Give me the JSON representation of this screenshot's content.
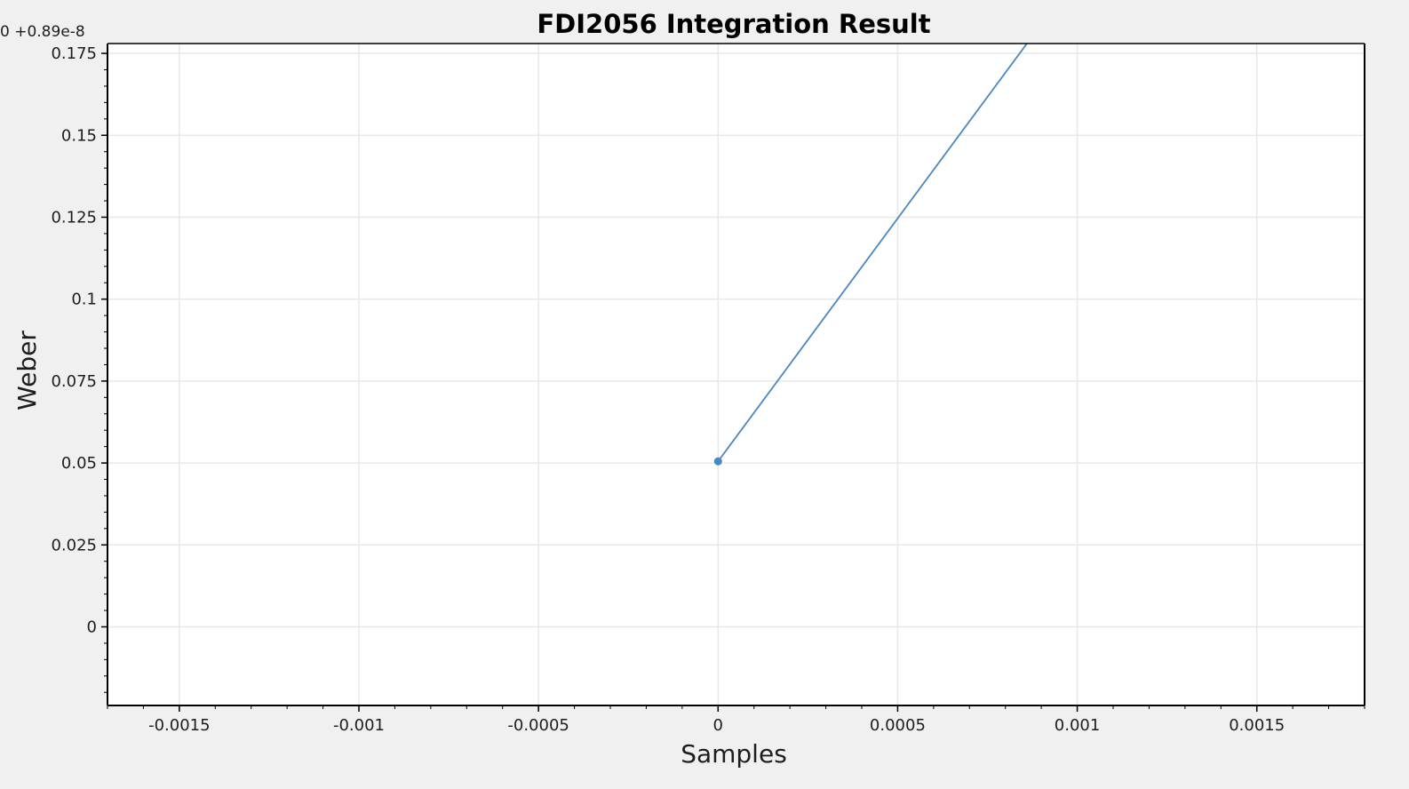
{
  "chart_data": {
    "type": "line",
    "title": "FDI2056 Integration Result",
    "xlabel": "Samples",
    "ylabel": "Weber",
    "y_offset_label": "0 +0.89e-8",
    "xlim": [
      -0.0017,
      0.0018
    ],
    "ylim": [
      -0.024,
      0.178
    ],
    "xticks": [
      -0.0015,
      -0.001,
      -0.0005,
      0,
      0.0005,
      0.001,
      0.0015
    ],
    "xtick_labels": [
      "-0.0015",
      "-0.001",
      "-0.0005",
      "0",
      "0.0005",
      "0.001",
      "0.0015"
    ],
    "yticks": [
      0,
      0.025,
      0.05,
      0.075,
      0.1,
      0.125,
      0.15,
      0.175
    ],
    "ytick_labels": [
      "0",
      "0.025",
      "0.05",
      "0.075",
      "0.1",
      "0.125",
      "0.15",
      "0.175"
    ],
    "grid": true,
    "series": [
      {
        "color": "#4a86c0",
        "x": [
          0,
          0.00087
        ],
        "y": [
          0.0505,
          0.1795
        ],
        "markers": [
          [
            0,
            0.0505
          ]
        ]
      }
    ]
  }
}
